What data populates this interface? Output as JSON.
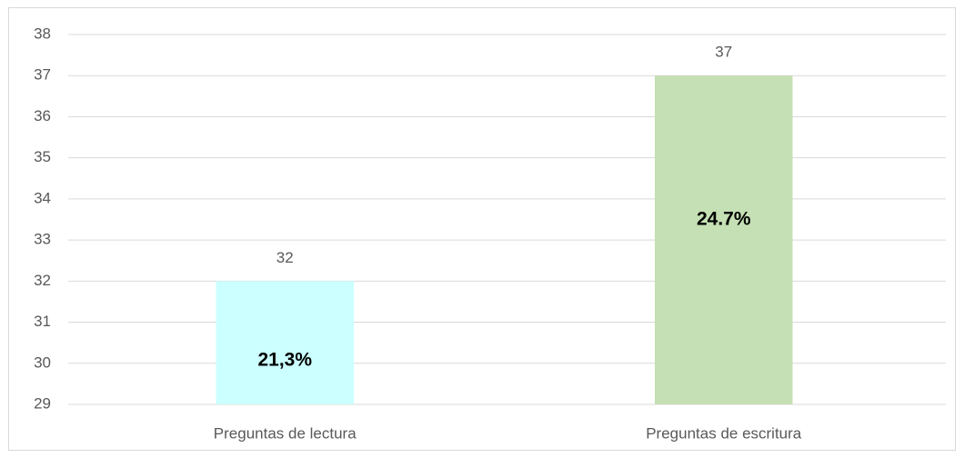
{
  "chart_data": {
    "type": "bar",
    "categories": [
      "Preguntas de lectura",
      "Preguntas de escritura"
    ],
    "values": [
      32,
      37
    ],
    "colors": [
      "#ccffff",
      "#c5e0b4"
    ],
    "annotations": [
      "21,3%",
      "24.7%"
    ],
    "ylim": [
      29,
      38
    ],
    "yticks": [
      29,
      30,
      31,
      32,
      33,
      34,
      35,
      36,
      37,
      38
    ],
    "grid": true
  }
}
